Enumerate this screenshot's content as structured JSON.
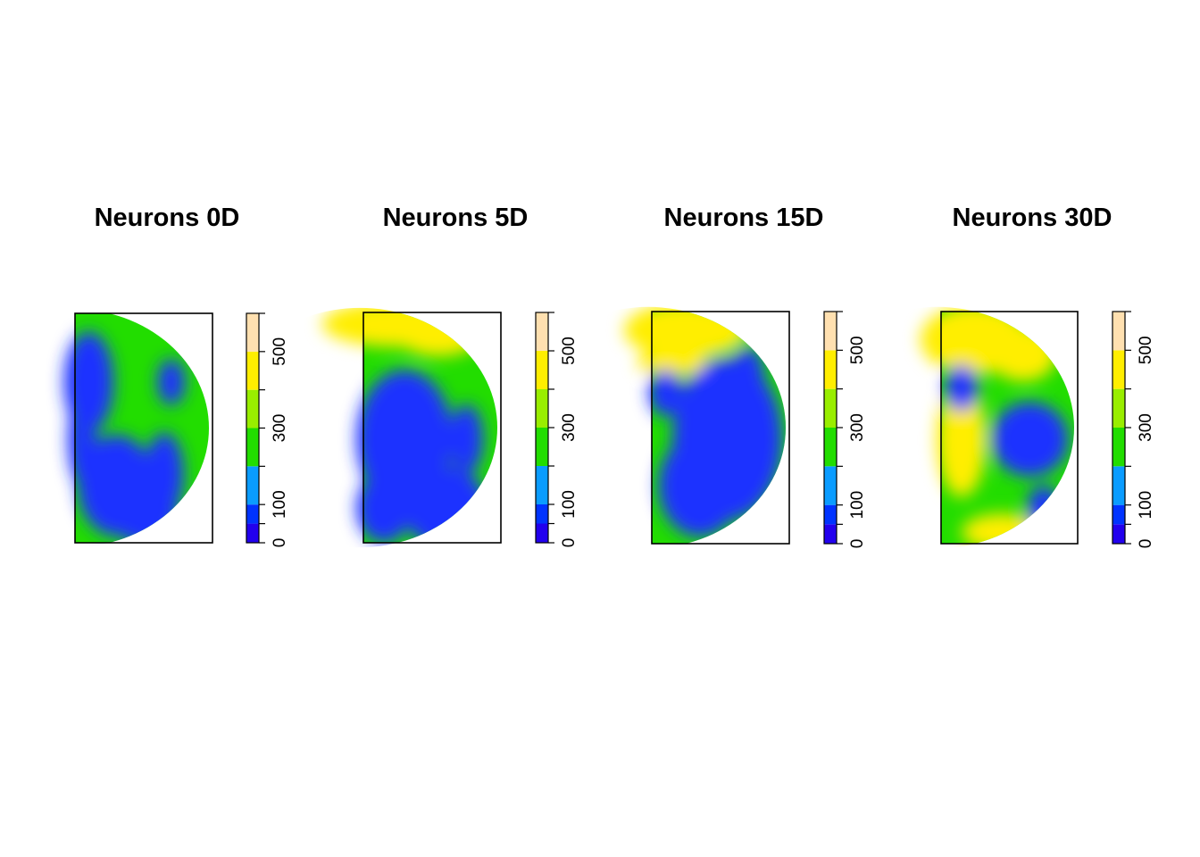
{
  "chart_data": [
    {
      "type": "heatmap",
      "title": "Neurons 0D",
      "colorbar": {
        "range": [
          0,
          600
        ],
        "ticks": [
          0,
          100,
          300,
          500
        ],
        "colors": [
          "#2200ee",
          "#0033ff",
          "#0a9cff",
          "#22dd00",
          "#99ee00",
          "#ffee00",
          "#ffe0b0"
        ],
        "breaks": [
          0,
          50,
          100,
          200,
          300,
          400,
          500,
          600
        ]
      },
      "dominant_levels": {
        "low": "#1a33ff",
        "mid": "#22dd00",
        "high": "#ffee00"
      }
    },
    {
      "type": "heatmap",
      "title": "Neurons 5D",
      "colorbar": {
        "range": [
          0,
          600
        ],
        "ticks": [
          0,
          100,
          300,
          500
        ],
        "colors": [
          "#2200ee",
          "#0033ff",
          "#0a9cff",
          "#22dd00",
          "#99ee00",
          "#ffee00",
          "#ffe0b0"
        ],
        "breaks": [
          0,
          50,
          100,
          200,
          300,
          400,
          500,
          600
        ]
      },
      "dominant_levels": {
        "low": "#1a33ff",
        "mid": "#22dd00",
        "high": "#ffee00"
      }
    },
    {
      "type": "heatmap",
      "title": "Neurons 15D",
      "colorbar": {
        "range": [
          0,
          600
        ],
        "ticks": [
          0,
          100,
          300,
          500
        ],
        "colors": [
          "#2200ee",
          "#0033ff",
          "#0a9cff",
          "#22dd00",
          "#99ee00",
          "#ffee00",
          "#ffe0b0"
        ],
        "breaks": [
          0,
          50,
          100,
          200,
          300,
          400,
          500,
          600
        ]
      },
      "dominant_levels": {
        "low": "#1a33ff",
        "mid": "#22dd00",
        "high": "#ffee00"
      }
    },
    {
      "type": "heatmap",
      "title": "Neurons 30D",
      "colorbar": {
        "range": [
          0,
          600
        ],
        "ticks": [
          0,
          100,
          300,
          500
        ],
        "colors": [
          "#2200ee",
          "#0033ff",
          "#0a9cff",
          "#22dd00",
          "#99ee00",
          "#ffee00",
          "#ffe0b0"
        ],
        "breaks": [
          0,
          50,
          100,
          200,
          300,
          400,
          500,
          600
        ]
      },
      "dominant_levels": {
        "low": "#1a33ff",
        "mid": "#22dd00",
        "high": "#ffee00"
      }
    }
  ]
}
